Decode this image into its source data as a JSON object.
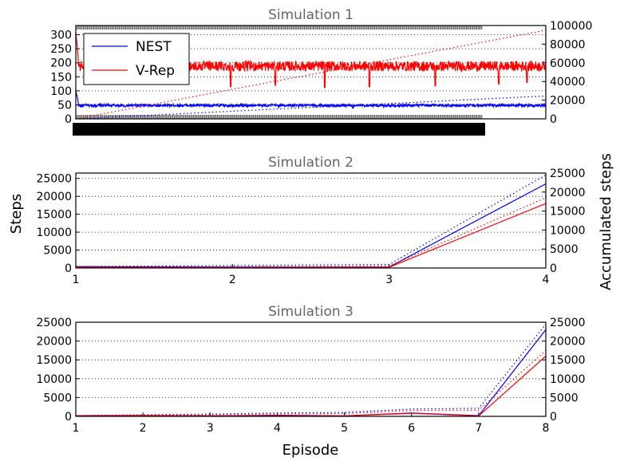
{
  "colors": {
    "nest": "#0000ff",
    "vrep": "#ff0000",
    "title": "#666666",
    "grid": "#000000"
  },
  "figure": {
    "ylabel_left": "Steps",
    "ylabel_right": "Accumulated steps",
    "xlabel": "Episode"
  },
  "legend": {
    "placement": "upper-left of Simulation 1",
    "entries": [
      "NEST",
      "V-Rep"
    ]
  },
  "chart_data": [
    {
      "type": "line",
      "title": "Simulation 1",
      "xlabel": "",
      "ylabel": "",
      "ylabel_right": "",
      "grid": "horizontal dotted",
      "xlim": [
        1,
        2000
      ],
      "ylim": [
        0,
        333
      ],
      "yticks": [
        0,
        50,
        100,
        150,
        200,
        250,
        300
      ],
      "ylim_right": [
        0,
        100000
      ],
      "yticks_right": [
        0,
        20000,
        40000,
        60000,
        80000,
        100000
      ],
      "note_xticks": "dense overlapping tick labels",
      "series": [
        {
          "name": "NEST",
          "axis": "left",
          "style": "solid",
          "color": "#0000ff",
          "summary": {
            "start_spike": 100,
            "typical": 48,
            "noise": 5,
            "dips": [
              [
                210,
                42
              ],
              [
                1180,
                38
              ],
              [
                1700,
                44
              ]
            ]
          }
        },
        {
          "name": "V-Rep",
          "axis": "left",
          "style": "solid",
          "color": "#ff0000",
          "summary": {
            "start_spike": 310,
            "typical": 188,
            "noise": 18,
            "dips": [
              [
                420,
                130
              ],
              [
                660,
                115
              ],
              [
                850,
                120
              ],
              [
                1060,
                112
              ],
              [
                1250,
                115
              ],
              [
                1530,
                118
              ],
              [
                1800,
                125
              ],
              [
                1920,
                130
              ]
            ]
          }
        },
        {
          "name": "NEST",
          "axis": "right",
          "style": "dotted",
          "color": "#0000ff",
          "x": [
            1,
            2000
          ],
          "y": [
            0,
            24500
          ]
        },
        {
          "name": "V-Rep",
          "axis": "right",
          "style": "dotted",
          "color": "#ff0000",
          "x": [
            1,
            2000
          ],
          "y": [
            0,
            95000
          ]
        }
      ]
    },
    {
      "type": "line",
      "title": "Simulation 2",
      "ylabel": "Steps",
      "ylabel_right": "Accumulated steps",
      "grid": "horizontal dotted",
      "xlim": [
        1,
        4
      ],
      "xticks": [
        1,
        2,
        3,
        4
      ],
      "ylim": [
        0,
        26500
      ],
      "yticks": [
        0,
        5000,
        10000,
        15000,
        20000,
        25000
      ],
      "ylim_right": [
        0,
        25000
      ],
      "yticks_right": [
        0,
        5000,
        10000,
        15000,
        20000,
        25000
      ],
      "series": [
        {
          "name": "NEST",
          "axis": "left",
          "style": "solid",
          "color": "#0000ff",
          "x": [
            1,
            2,
            3,
            4
          ],
          "y": [
            400,
            250,
            300,
            23500
          ]
        },
        {
          "name": "V-Rep",
          "axis": "left",
          "style": "solid",
          "color": "#ff0000",
          "x": [
            1,
            2,
            3,
            4
          ],
          "y": [
            200,
            100,
            200,
            18000
          ]
        },
        {
          "name": "NEST",
          "axis": "right",
          "style": "dotted",
          "color": "#0000ff",
          "x": [
            1,
            2,
            3,
            4
          ],
          "y": [
            400,
            650,
            950,
            24500
          ]
        },
        {
          "name": "V-Rep",
          "axis": "right",
          "style": "dotted",
          "color": "#ff0000",
          "x": [
            1,
            2,
            3,
            4
          ],
          "y": [
            200,
            300,
            500,
            18500
          ]
        }
      ]
    },
    {
      "type": "line",
      "title": "Simulation 3",
      "xlabel": "Episode",
      "grid": "horizontal dotted",
      "xlim": [
        1,
        8
      ],
      "xticks": [
        1,
        2,
        3,
        4,
        5,
        6,
        7,
        8
      ],
      "ylim": [
        0,
        25000
      ],
      "yticks": [
        0,
        5000,
        10000,
        15000,
        20000,
        25000
      ],
      "ylim_right": [
        0,
        25000
      ],
      "yticks_right": [
        0,
        5000,
        10000,
        15000,
        20000,
        25000
      ],
      "series": [
        {
          "name": "NEST",
          "axis": "left",
          "style": "solid",
          "color": "#0000ff",
          "x": [
            1,
            2,
            3,
            4,
            5,
            6,
            7,
            8
          ],
          "y": [
            200,
            250,
            150,
            300,
            150,
            900,
            200,
            23000
          ]
        },
        {
          "name": "V-Rep",
          "axis": "left",
          "style": "solid",
          "color": "#ff0000",
          "x": [
            1,
            2,
            3,
            4,
            5,
            6,
            7,
            8
          ],
          "y": [
            150,
            200,
            100,
            200,
            100,
            800,
            100,
            16000
          ]
        },
        {
          "name": "NEST",
          "axis": "right",
          "style": "dotted",
          "color": "#0000ff",
          "x": [
            1,
            2,
            3,
            4,
            5,
            6,
            7,
            8
          ],
          "y": [
            200,
            450,
            600,
            900,
            1050,
            1950,
            2150,
            24500
          ]
        },
        {
          "name": "V-Rep",
          "axis": "right",
          "style": "dotted",
          "color": "#ff0000",
          "x": [
            1,
            2,
            3,
            4,
            5,
            6,
            7,
            8
          ],
          "y": [
            150,
            350,
            450,
            650,
            750,
            1550,
            1650,
            17500
          ]
        }
      ]
    }
  ]
}
